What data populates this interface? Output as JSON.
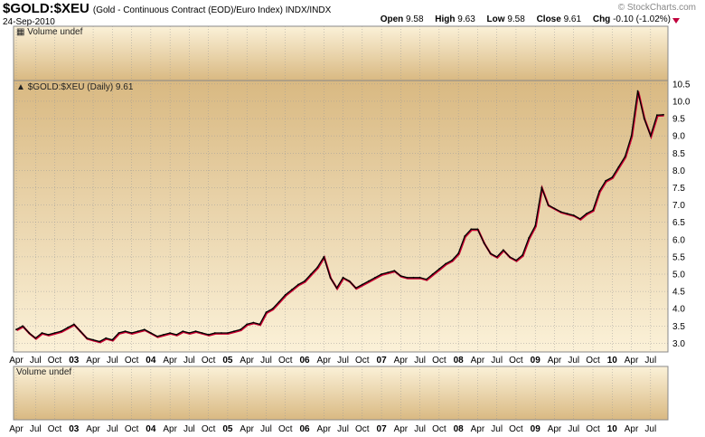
{
  "header": {
    "symbol": "$GOLD:$XEU",
    "description": "(Gold - Continuous Contract (EOD)/Euro Index)  INDX/INDX",
    "date": "24-Sep-2010",
    "logo": "© StockCharts.com",
    "open_label": "Open",
    "open_value": "9.58",
    "high_label": "High",
    "high_value": "9.63",
    "low_label": "Low",
    "low_value": "9.58",
    "close_label": "Close",
    "close_value": "9.61",
    "chg_label": "Chg",
    "chg_value": "-0.10 (-1.02%)",
    "down_color": "#c0003c"
  },
  "volume_top": {
    "label": "Volume undef"
  },
  "volume_bottom": {
    "label": "Volume undef"
  },
  "main_label": "$GOLD:$XEU (Daily) 9.61",
  "colors": {
    "panel_light": "#fbf1d8",
    "panel_dark": "#d9b982",
    "price_line": "#000000",
    "price_shadow": "#cc0033",
    "grid": "#9a9a9a"
  },
  "chart_data": {
    "type": "line",
    "title": "$GOLD:$XEU (Daily) 9.61",
    "xlabel": "",
    "ylabel": "",
    "ylim": [
      2.75,
      10.6
    ],
    "y_ticks": [
      "3.0",
      "3.5",
      "4.0",
      "4.5",
      "5.0",
      "5.5",
      "6.0",
      "6.5",
      "7.0",
      "7.5",
      "8.0",
      "8.5",
      "9.0",
      "9.5",
      "10.0",
      "10.5"
    ],
    "x_ticks": [
      "Apr",
      "Jul",
      "Oct",
      "03",
      "Apr",
      "Jul",
      "Oct",
      "04",
      "Apr",
      "Jul",
      "Oct",
      "05",
      "Apr",
      "Jul",
      "Oct",
      "06",
      "Apr",
      "Jul",
      "Oct",
      "07",
      "Apr",
      "Jul",
      "Oct",
      "08",
      "Apr",
      "Jul",
      "Oct",
      "09",
      "Apr",
      "Jul",
      "Oct",
      "10",
      "Apr",
      "Jul"
    ],
    "x_ticks_bold": [
      false,
      false,
      false,
      true,
      false,
      false,
      false,
      true,
      false,
      false,
      false,
      true,
      false,
      false,
      false,
      true,
      false,
      false,
      false,
      true,
      false,
      false,
      false,
      true,
      false,
      false,
      false,
      true,
      false,
      false,
      false,
      true,
      false,
      false
    ],
    "x_range": [
      "2002-04",
      "2010-09"
    ],
    "grid": true,
    "series": [
      {
        "x": [
          "2002-04",
          "2002-05",
          "2002-06",
          "2002-07",
          "2002-08",
          "2002-09",
          "2002-10",
          "2002-11",
          "2002-12",
          "2003-01",
          "2003-02",
          "2003-03",
          "2003-04",
          "2003-05",
          "2003-06",
          "2003-07",
          "2003-08",
          "2003-09",
          "2003-10",
          "2003-11",
          "2003-12",
          "2004-01",
          "2004-02",
          "2004-03",
          "2004-04",
          "2004-05",
          "2004-06",
          "2004-07",
          "2004-08",
          "2004-09",
          "2004-10",
          "2004-11",
          "2004-12",
          "2005-01",
          "2005-02",
          "2005-03",
          "2005-04",
          "2005-05",
          "2005-06",
          "2005-07",
          "2005-08",
          "2005-09",
          "2005-10",
          "2005-11",
          "2005-12",
          "2006-01",
          "2006-02",
          "2006-03",
          "2006-04",
          "2006-05",
          "2006-06",
          "2006-07",
          "2006-08",
          "2006-09",
          "2006-10",
          "2006-11",
          "2006-12",
          "2007-01",
          "2007-02",
          "2007-03",
          "2007-04",
          "2007-05",
          "2007-06",
          "2007-07",
          "2007-08",
          "2007-09",
          "2007-10",
          "2007-11",
          "2007-12",
          "2008-01",
          "2008-02",
          "2008-03",
          "2008-04",
          "2008-05",
          "2008-06",
          "2008-07",
          "2008-08",
          "2008-09",
          "2008-10",
          "2008-11",
          "2008-12",
          "2009-01",
          "2009-02",
          "2009-03",
          "2009-04",
          "2009-05",
          "2009-06",
          "2009-07",
          "2009-08",
          "2009-09",
          "2009-10",
          "2009-11",
          "2009-12",
          "2010-01",
          "2010-02",
          "2010-03",
          "2010-04",
          "2010-05",
          "2010-06",
          "2010-07",
          "2010-08",
          "2010-09"
        ],
        "values": [
          3.4,
          3.5,
          3.3,
          3.15,
          3.3,
          3.25,
          3.3,
          3.35,
          3.45,
          3.55,
          3.35,
          3.15,
          3.1,
          3.05,
          3.15,
          3.1,
          3.3,
          3.35,
          3.3,
          3.35,
          3.4,
          3.3,
          3.2,
          3.25,
          3.3,
          3.25,
          3.35,
          3.3,
          3.35,
          3.3,
          3.25,
          3.3,
          3.3,
          3.3,
          3.35,
          3.4,
          3.55,
          3.6,
          3.55,
          3.9,
          4.0,
          4.2,
          4.4,
          4.55,
          4.7,
          4.8,
          5.0,
          5.2,
          5.5,
          4.9,
          4.6,
          4.9,
          4.8,
          4.6,
          4.7,
          4.8,
          4.9,
          5.0,
          5.05,
          5.1,
          4.95,
          4.9,
          4.9,
          4.9,
          4.85,
          5.0,
          5.15,
          5.3,
          5.4,
          5.6,
          6.1,
          6.3,
          6.3,
          5.9,
          5.6,
          5.5,
          5.7,
          5.5,
          5.4,
          5.55,
          6.05,
          6.4,
          7.5,
          7.0,
          6.9,
          6.8,
          6.75,
          6.7,
          6.6,
          6.75,
          6.85,
          7.4,
          7.7,
          7.8,
          8.1,
          8.4,
          9.0,
          10.3,
          9.5,
          9.0,
          9.6,
          9.61
        ]
      }
    ]
  }
}
